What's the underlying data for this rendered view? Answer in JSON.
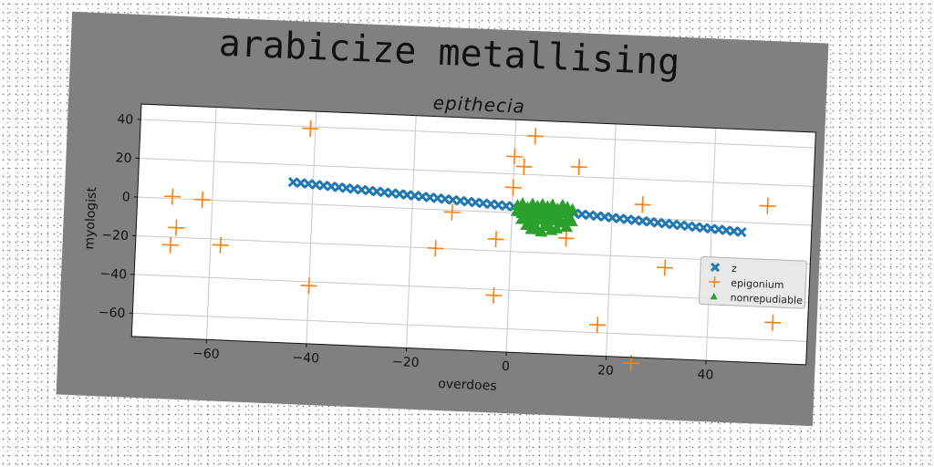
{
  "chart_data": {
    "type": "scatter",
    "suptitle": "arabicize metallising",
    "title": "epithecia",
    "xlabel": "overdoes",
    "ylabel": "myologist",
    "xlim": [
      -75,
      60
    ],
    "ylim": [
      -72,
      48
    ],
    "xticks": [
      -60,
      -40,
      -20,
      0,
      20,
      40
    ],
    "yticks": [
      -60,
      -40,
      -20,
      0,
      20,
      40
    ],
    "xtick_labels": [
      "−60",
      "−40",
      "−20",
      "0",
      "20",
      "40"
    ],
    "ytick_labels": [
      "−60",
      "−40",
      "−20",
      "0",
      "20",
      "40"
    ],
    "grid": true,
    "legend_position": "center-right",
    "series": [
      {
        "name": "z",
        "marker": "x",
        "color": "#1f77b4",
        "line": {
          "x_start": -44,
          "y_start": 11,
          "x_end": 46,
          "y_end": -5,
          "count": 60
        }
      },
      {
        "name": "epigonium",
        "marker": "plus",
        "color": "#ff7f0e",
        "points": [
          [
            -41,
            39
          ],
          [
            4,
            40
          ],
          [
            0,
            29
          ],
          [
            2,
            24
          ],
          [
            13,
            25
          ],
          [
            0,
            13
          ],
          [
            26,
            7
          ],
          [
            51,
            9
          ],
          [
            -68,
            1
          ],
          [
            -62,
            0
          ],
          [
            -12,
            -1
          ],
          [
            -67,
            -15
          ],
          [
            -68,
            -24
          ],
          [
            -58,
            -23
          ],
          [
            -15,
            -20
          ],
          [
            -3,
            -14
          ],
          [
            11,
            -12
          ],
          [
            31,
            -25
          ],
          [
            -40,
            -42
          ],
          [
            -3,
            -43
          ],
          [
            53,
            -51
          ],
          [
            18,
            -56
          ],
          [
            25,
            -75
          ]
        ]
      },
      {
        "name": "nonrepudiable",
        "marker": "triangle",
        "color": "#2ca02c",
        "points": [
          [
            1,
            4
          ],
          [
            2,
            5
          ],
          [
            3,
            3
          ],
          [
            4,
            5
          ],
          [
            5,
            4
          ],
          [
            6,
            5
          ],
          [
            7,
            4
          ],
          [
            8,
            5
          ],
          [
            9,
            3
          ],
          [
            10,
            5
          ],
          [
            11,
            4
          ],
          [
            12,
            3
          ],
          [
            1,
            1
          ],
          [
            2,
            0
          ],
          [
            3,
            2
          ],
          [
            4,
            0
          ],
          [
            5,
            1
          ],
          [
            6,
            2
          ],
          [
            7,
            0
          ],
          [
            8,
            1
          ],
          [
            9,
            0
          ],
          [
            10,
            2
          ],
          [
            11,
            1
          ],
          [
            2,
            -3
          ],
          [
            3,
            -2
          ],
          [
            4,
            -4
          ],
          [
            5,
            -2
          ],
          [
            6,
            -3
          ],
          [
            7,
            -4
          ],
          [
            8,
            -2
          ],
          [
            9,
            -3
          ],
          [
            10,
            -4
          ],
          [
            11,
            -2
          ],
          [
            12,
            -3
          ],
          [
            3,
            -6
          ],
          [
            5,
            -7
          ],
          [
            7,
            -6
          ],
          [
            9,
            -7
          ],
          [
            11,
            -6
          ],
          [
            4,
            -8
          ],
          [
            8,
            -8
          ],
          [
            6,
            -9
          ]
        ]
      }
    ]
  }
}
